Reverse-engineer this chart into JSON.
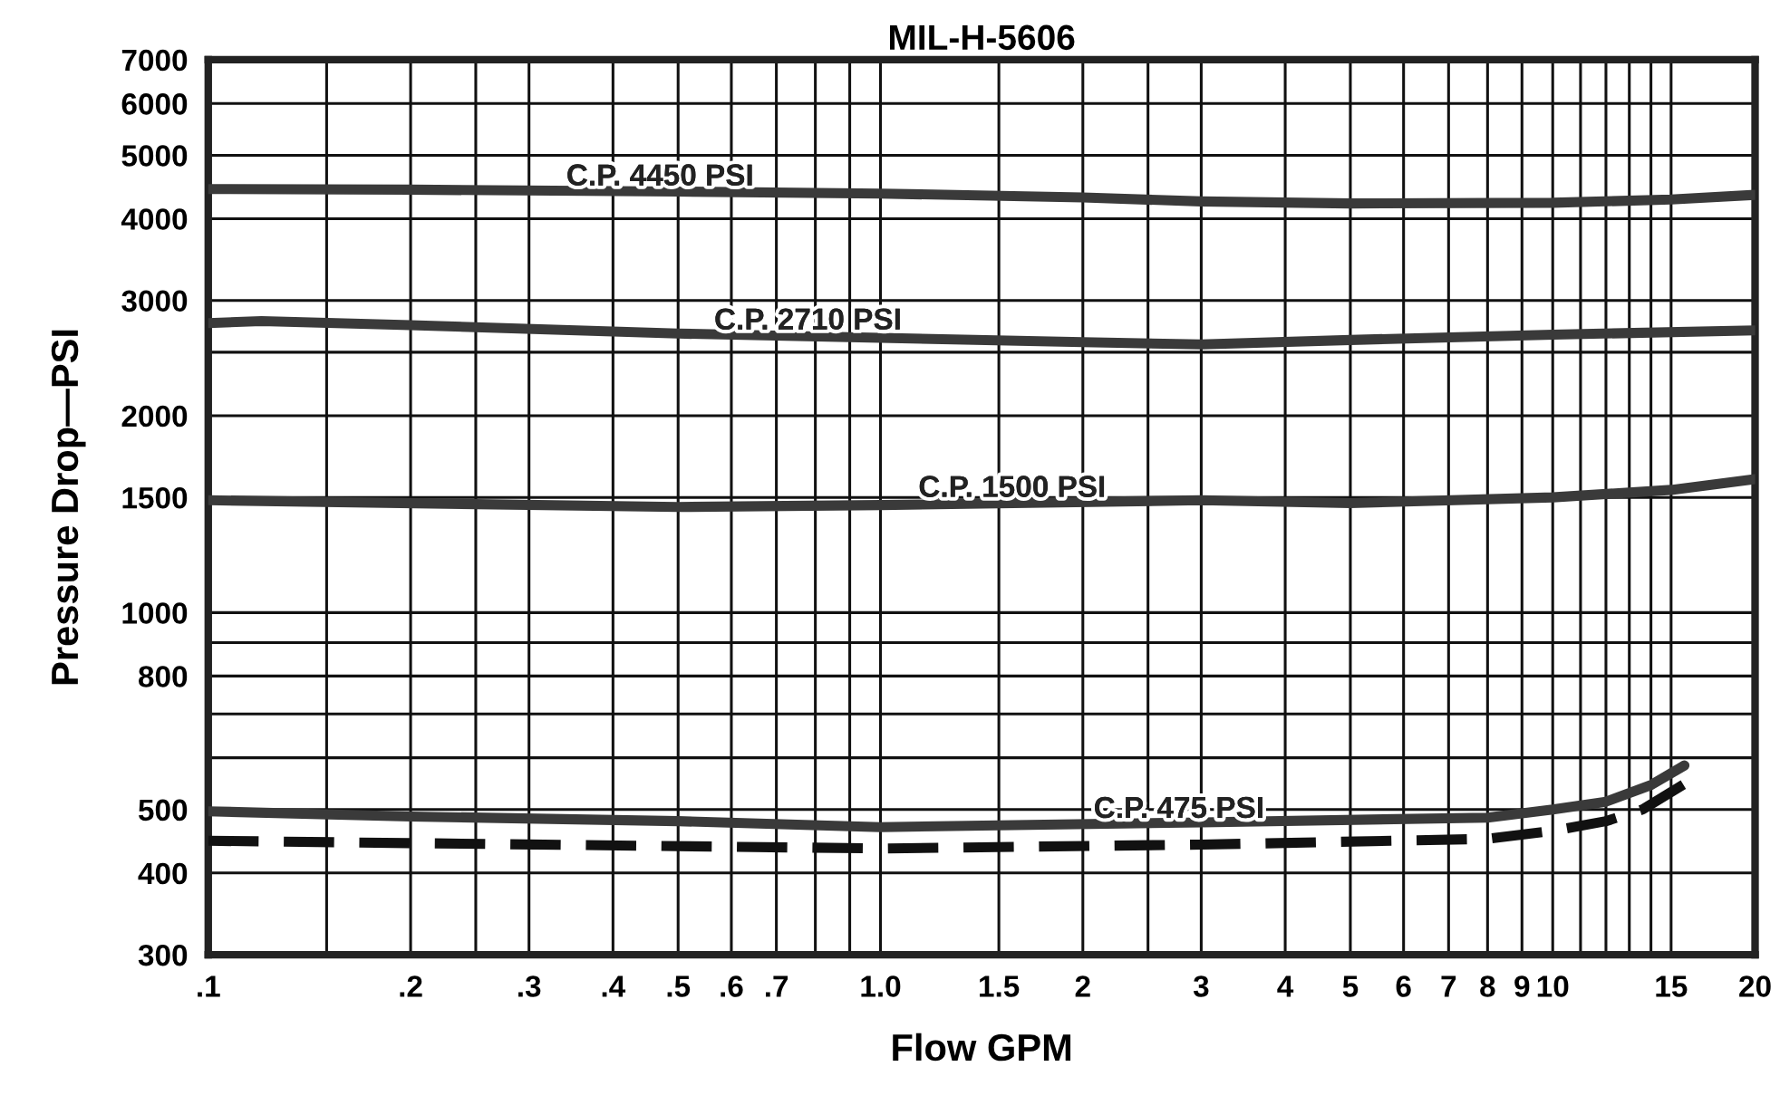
{
  "chart_data": {
    "type": "line",
    "title": "MIL-H-5606",
    "xlabel": "Flow GPM",
    "ylabel": "Pressure Drop—PSI",
    "log": "xy",
    "grid": true,
    "xlim": [
      0.1,
      20
    ],
    "ylim": [
      300,
      7000
    ],
    "xticks": [
      {
        "value": 0.1,
        "label": ".1"
      },
      {
        "value": 0.15,
        "label": null
      },
      {
        "value": 0.2,
        "label": ".2"
      },
      {
        "value": 0.25,
        "label": null
      },
      {
        "value": 0.3,
        "label": ".3"
      },
      {
        "value": 0.4,
        "label": ".4"
      },
      {
        "value": 0.5,
        "label": ".5"
      },
      {
        "value": 0.6,
        "label": ".6"
      },
      {
        "value": 0.7,
        "label": ".7"
      },
      {
        "value": 0.8,
        "label": null
      },
      {
        "value": 0.9,
        "label": null
      },
      {
        "value": 1.0,
        "label": "1.0"
      },
      {
        "value": 1.5,
        "label": "1.5"
      },
      2,
      {
        "value": 2.5,
        "label": null
      },
      3,
      4,
      5,
      6,
      7,
      8,
      9,
      10,
      {
        "value": 11,
        "label": null
      },
      {
        "value": 12,
        "label": null
      },
      {
        "value": 13,
        "label": null
      },
      {
        "value": 14,
        "label": null
      },
      15,
      20
    ],
    "yticks": [
      300,
      400,
      500,
      {
        "value": 600,
        "label": null
      },
      {
        "value": 700,
        "label": null
      },
      800,
      {
        "value": 900,
        "label": null
      },
      1000,
      1500,
      2000,
      {
        "value": 2500,
        "label": null
      },
      3000,
      4000,
      5000,
      6000,
      7000
    ],
    "series": [
      {
        "color": "#3a3a3a",
        "line_style": "solid",
        "x": [
          0.1,
          0.2,
          0.5,
          1,
          2,
          3,
          5,
          10,
          15,
          20
        ],
        "values": [
          4440,
          4430,
          4400,
          4370,
          4310,
          4250,
          4220,
          4230,
          4280,
          4350
        ]
      },
      {
        "color": "#3a3a3a",
        "line_style": "solid",
        "x": [
          0.1,
          0.12,
          0.2,
          0.5,
          1,
          2,
          3,
          5,
          10,
          20
        ],
        "values": [
          2770,
          2790,
          2750,
          2670,
          2630,
          2590,
          2570,
          2610,
          2660,
          2700
        ]
      },
      {
        "color": "#3a3a3a",
        "line_style": "solid",
        "x": [
          0.1,
          0.5,
          1,
          3,
          5,
          10,
          15,
          20
        ],
        "values": [
          1485,
          1450,
          1460,
          1485,
          1470,
          1500,
          1540,
          1600
        ]
      },
      {
        "color": "#3a3a3a",
        "line_style": "solid",
        "x": [
          0.1,
          0.2,
          0.5,
          1,
          3,
          8,
          10,
          12,
          14,
          15.7
        ],
        "values": [
          497,
          488,
          480,
          470,
          478,
          486,
          500,
          514,
          545,
          584
        ]
      },
      {
        "color": "#111111",
        "line_style": "dashed",
        "x": [
          0.1,
          1,
          3,
          8,
          10,
          12,
          13.6,
          15.7
        ],
        "values": [
          448,
          436,
          442,
          451,
          464,
          480,
          500,
          547
        ]
      }
    ],
    "annotations": [
      {
        "text": "C.P. 4450 PSI",
        "x": 0.47,
        "y": 4400
      },
      {
        "text": "C.P. 2710 PSI",
        "x": 0.78,
        "y": 2650
      },
      {
        "text": "C.P. 1500 PSI",
        "x": 1.57,
        "y": 1470
      },
      {
        "text": "C.P. 475 PSI",
        "x": 2.78,
        "y": 475
      }
    ]
  }
}
